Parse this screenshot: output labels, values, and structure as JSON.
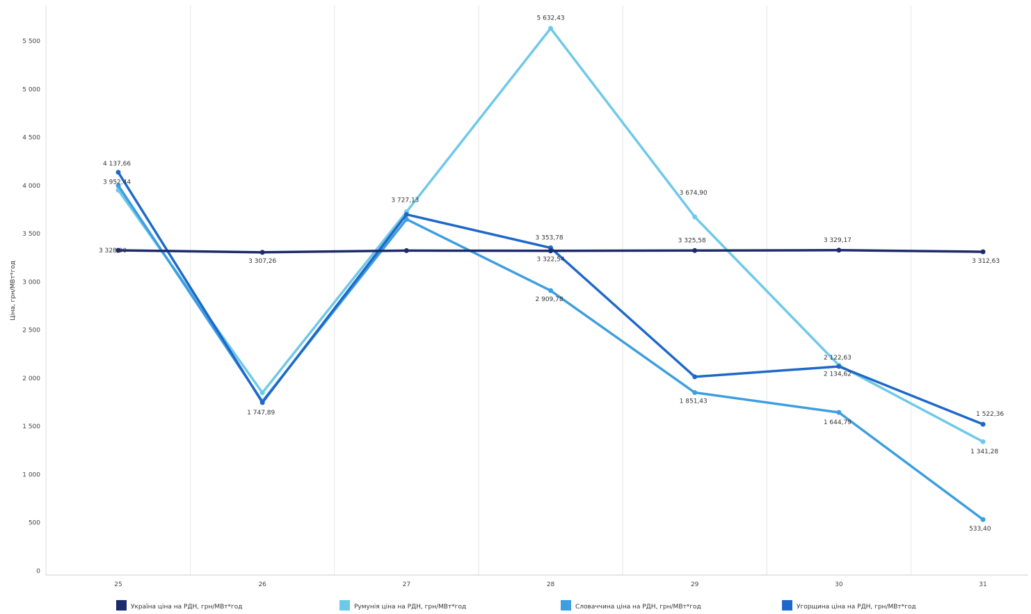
{
  "chart_data": {
    "type": "line",
    "title": "",
    "xlabel": "",
    "ylabel": "Ціна, грн/МВт*год",
    "categories": [
      "25",
      "26",
      "27",
      "28",
      "29",
      "30",
      "31"
    ],
    "ylim": [
      0,
      5800
    ],
    "yticks": [
      0,
      500,
      1000,
      1500,
      2000,
      2500,
      3000,
      3500,
      4000,
      4500,
      5000,
      5500
    ],
    "ytick_labels": [
      "0",
      "500",
      "1 000",
      "1 500",
      "2 000",
      "2 500",
      "3 000",
      "3 500",
      "4 000",
      "4 500",
      "5 000",
      "5 500"
    ],
    "grid": {
      "vertical": true,
      "horizontal": false
    },
    "legend_position": "bottom",
    "series": [
      {
        "name": "Україна ціна на РДН, грн/МВт*год",
        "color": "#1b2a6b",
        "values": [
          3328.0,
          3307.26,
          3325.0,
          3322.54,
          3325.58,
          3329.17,
          3312.63
        ],
        "labels": [
          "3 328,00",
          "3 307,26",
          "",
          "3 322,54",
          "3 325,58",
          "3 329,17",
          "3 312,63"
        ]
      },
      {
        "name": "Румунія ціна на РДН, грн/МВт*год",
        "color": "#6ec9e8",
        "values": [
          3952.44,
          1850.0,
          3727.13,
          5632.43,
          3674.9,
          2134.62,
          1341.28
        ],
        "labels": [
          "3 952,44",
          "",
          "3 727,13",
          "5 632,43",
          "3 674,90",
          "2 134,62",
          "1 341,28"
        ]
      },
      {
        "name": "Словаччина ціна на РДН, грн/МВт*год",
        "color": "#3d9ee0",
        "values": [
          4000.0,
          1760.0,
          3650.0,
          2909.78,
          1851.43,
          1644.79,
          533.4
        ],
        "labels": [
          "",
          "",
          "",
          "2 909,78",
          "1 851,43",
          "1 644,79",
          "533,40"
        ]
      },
      {
        "name": "Угорщина ціна на РДН, грн/МВт*год",
        "color": "#1f68c9",
        "values": [
          4137.66,
          1747.89,
          3700.0,
          3353.78,
          2015.0,
          2122.63,
          1522.36
        ],
        "labels": [
          "4 137,66",
          "1 747,89",
          "",
          "3 353,78",
          "",
          "2 122,63",
          "1 522,36"
        ]
      }
    ]
  }
}
